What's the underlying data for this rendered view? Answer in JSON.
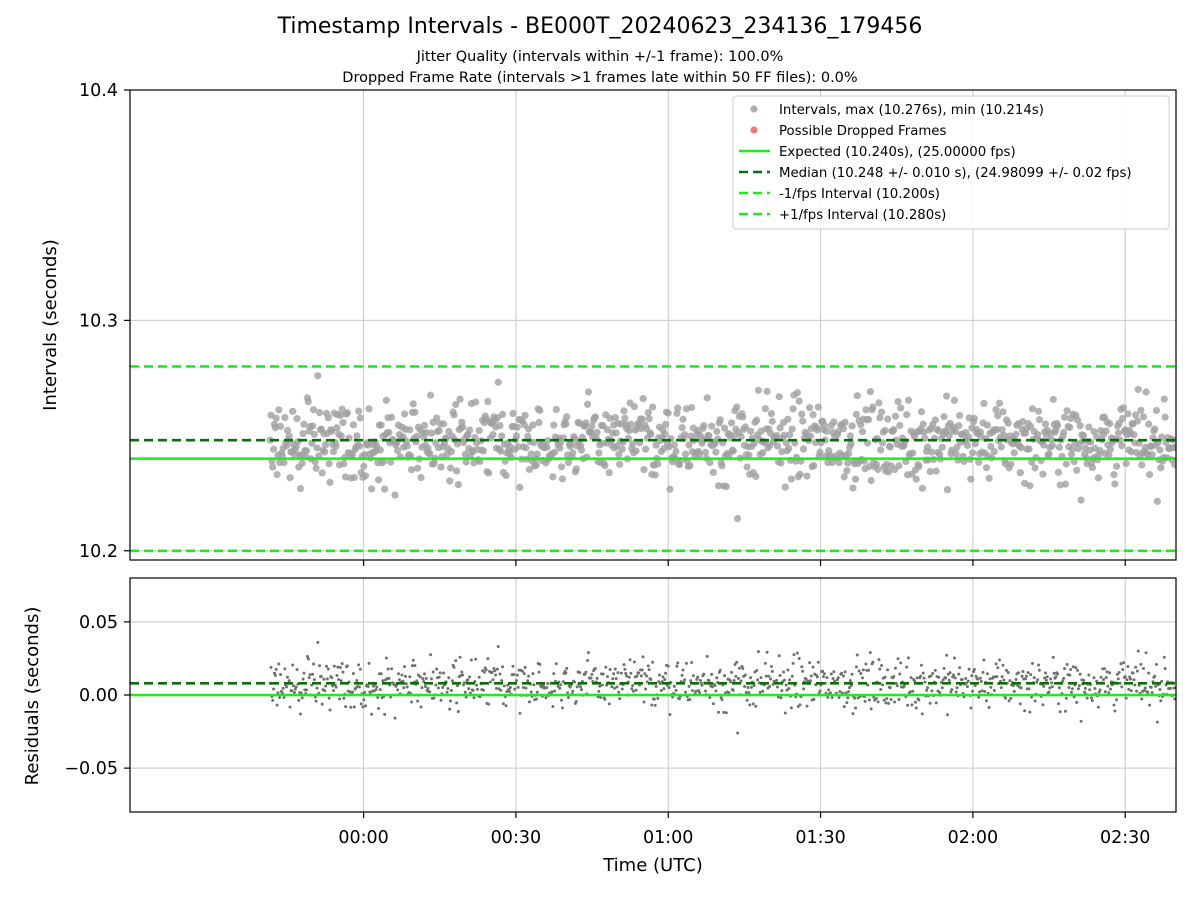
{
  "title": "Timestamp Intervals - BE000T_20240623_234136_179456",
  "subtitle_jitter": "Jitter Quality (intervals within +/-1 frame): 100.0%",
  "subtitle_dropped": "Dropped Frame Rate (intervals >1 frames late within 50 FF files): 0.0%",
  "chart_data": [
    {
      "type": "scatter",
      "panel": "top",
      "ylabel": "Intervals (seconds)",
      "ylim": [
        10.196,
        10.4
      ],
      "yticks": [
        10.2,
        10.3,
        10.4
      ],
      "ytick_labels": [
        "10.2",
        "10.3",
        "10.4"
      ],
      "grid": true,
      "legend_position": "upper right",
      "x_range_utc": [
        "23:41:36",
        "02:48:30"
      ],
      "xlim_minutes": [
        -46,
        160
      ],
      "x_unit": "minutes from 00:00 UTC (previous day negative)",
      "sample_interval_seconds": 10.248,
      "observed_max": 10.276,
      "observed_min": 10.214,
      "expected": 10.24,
      "median": 10.248,
      "minus_one_frame": 10.2,
      "plus_one_frame": 10.28,
      "series": [
        {
          "name": "Intervals, max (10.276s), min (10.214s)",
          "kind": "points",
          "color": "#a0a0a0",
          "count": 1100
        },
        {
          "name": "Possible Dropped Frames",
          "kind": "points",
          "color": "#f06060",
          "count": 0
        },
        {
          "name": "Expected (10.240s), (25.00000 fps)",
          "kind": "hline",
          "value": 10.24,
          "color": "#18f018",
          "style": "solid"
        },
        {
          "name": "Median (10.248 +/- 0.010 s), (24.98099 +/- 0.02 fps)",
          "kind": "hline",
          "value": 10.248,
          "color": "#0a6f0a",
          "style": "dashed"
        },
        {
          "name": "-1/fps Interval (10.200s)",
          "kind": "hline",
          "value": 10.2,
          "color": "#18f018",
          "style": "dashed"
        },
        {
          "name": "+1/fps Interval (10.280s)",
          "kind": "hline",
          "value": 10.28,
          "color": "#18f018",
          "style": "dashed"
        }
      ]
    },
    {
      "type": "scatter",
      "panel": "bottom",
      "xlabel": "Time (UTC)",
      "ylabel": "Residuals (seconds)",
      "ylim": [
        -0.08,
        0.08
      ],
      "yticks": [
        -0.05,
        0.0,
        0.05
      ],
      "ytick_labels": [
        "−0.05",
        "0.00",
        "0.05"
      ],
      "xticks": [
        "00:00",
        "00:30",
        "01:00",
        "01:30",
        "02:00",
        "02:30"
      ],
      "xtick_minutes": [
        0,
        30,
        60,
        90,
        120,
        150
      ],
      "grid": true,
      "series": [
        {
          "name": "Residuals",
          "kind": "points",
          "color": "#707070",
          "baseline": 0.0
        },
        {
          "name": "Zero",
          "kind": "hline",
          "value": 0.0,
          "color": "#18f018",
          "style": "solid"
        },
        {
          "name": "Median offset",
          "kind": "hline",
          "value": 0.008,
          "color": "#0a6f0a",
          "style": "dashed"
        }
      ]
    }
  ]
}
